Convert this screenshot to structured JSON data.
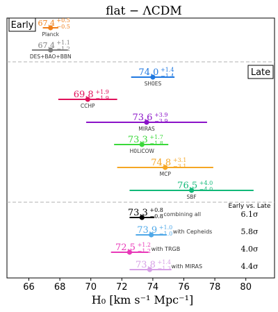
{
  "chart_data": {
    "type": "scatter",
    "title": "flat − ΛCDM",
    "xlabel": "H₀ [km s⁻¹ Mpc⁻¹]",
    "xlim": [
      65,
      81
    ],
    "xticks": [
      "66",
      "68",
      "70",
      "72",
      "74",
      "76",
      "78",
      "80"
    ],
    "sections": {
      "early": "Early",
      "late": "Late",
      "combined_header": "Early vs. Late"
    },
    "points": [
      {
        "label": "Planck",
        "value": 67.4,
        "plus": 0.5,
        "minus": 0.5,
        "value_text": "67.4",
        "plus_text": "+0.5",
        "minus_text": "−0.5",
        "color": "#f07f1a"
      },
      {
        "label": "DES+BAO+BBN",
        "value": 67.4,
        "plus": 1.1,
        "minus": 1.2,
        "value_text": "67.4",
        "plus_text": "+1.1",
        "minus_text": "−1.2",
        "color": "#808080"
      },
      {
        "label": "SH0ES",
        "value": 74.0,
        "plus": 1.4,
        "minus": 1.4,
        "value_text": "74.0",
        "plus_text": "+1.4",
        "minus_text": "−1.4",
        "color": "#1f78e0"
      },
      {
        "label": "CCHP",
        "value": 69.8,
        "plus": 1.9,
        "minus": 1.9,
        "value_text": "69.8",
        "plus_text": "+1.9",
        "minus_text": "−1.9",
        "color": "#e0105a"
      },
      {
        "label": "MIRAS",
        "value": 73.6,
        "plus": 3.9,
        "minus": 3.9,
        "value_text": "73.6",
        "plus_text": "+3.9",
        "minus_text": "−3.9",
        "color": "#8a12c8"
      },
      {
        "label": "H0LiCOW",
        "value": 73.3,
        "plus": 1.7,
        "minus": 1.8,
        "value_text": "73.3",
        "plus_text": "+1.7",
        "minus_text": "−1.8",
        "color": "#3ad83a"
      },
      {
        "label": "MCP",
        "value": 74.8,
        "plus": 3.1,
        "minus": 3.1,
        "value_text": "74.8",
        "plus_text": "+3.1",
        "minus_text": "−3.1",
        "color": "#f5a623"
      },
      {
        "label": "SBF",
        "value": 76.5,
        "plus": 4.0,
        "minus": 4.0,
        "value_text": "76.5",
        "plus_text": "+4.0",
        "minus_text": "−4.0",
        "color": "#10b878"
      },
      {
        "label": "combining all",
        "value": 73.3,
        "plus": 0.8,
        "minus": 0.8,
        "value_text": "73.3",
        "plus_text": "+0.8",
        "minus_text": "−0.8",
        "color": "#000000",
        "tension": "6.1σ"
      },
      {
        "label": "with Cepheids",
        "value": 73.9,
        "plus": 1.0,
        "minus": 1.0,
        "value_text": "73.9",
        "plus_text": "+1.0",
        "minus_text": "−1.0",
        "color": "#4fa8e8",
        "tension": "5.8σ"
      },
      {
        "label": "with TRGB",
        "value": 72.5,
        "plus": 1.2,
        "minus": 1.2,
        "value_text": "72.5",
        "plus_text": "+1.2",
        "minus_text": "−1.2",
        "color": "#e838b8",
        "tension": "4.0σ"
      },
      {
        "label": "with MIRAS",
        "value": 73.8,
        "plus": 1.4,
        "minus": 1.3,
        "value_text": "73.8",
        "plus_text": "+1.4",
        "minus_text": "−1.3",
        "color": "#d6a0e6",
        "tension": "4.4σ"
      }
    ]
  }
}
